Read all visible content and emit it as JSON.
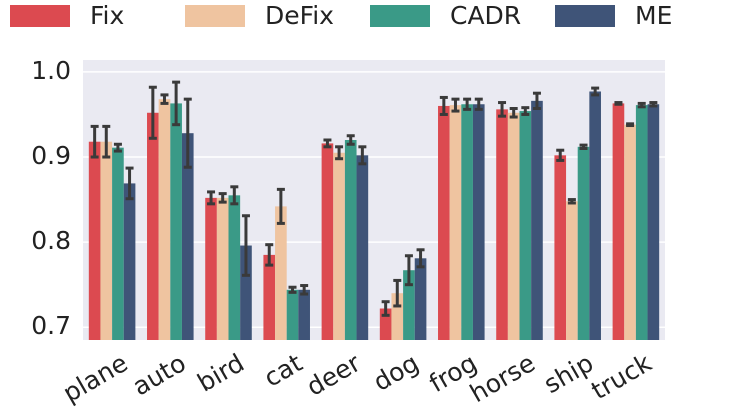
{
  "chart_data": {
    "type": "bar",
    "categories": [
      "plane",
      "auto",
      "bird",
      "cat",
      "deer",
      "dog",
      "frog",
      "horse",
      "ship",
      "truck"
    ],
    "series": [
      {
        "name": "Fix",
        "color": "#dc4a50",
        "values": [
          0.918,
          0.952,
          0.852,
          0.785,
          0.916,
          0.722,
          0.96,
          0.956,
          0.902,
          0.963
        ],
        "errors": [
          0.018,
          0.03,
          0.007,
          0.012,
          0.004,
          0.008,
          0.01,
          0.008,
          0.006,
          0.001
        ]
      },
      {
        "name": "DeFix",
        "color": "#efc4a0",
        "values": [
          0.918,
          0.968,
          0.852,
          0.842,
          0.905,
          0.74,
          0.961,
          0.952,
          0.848,
          0.938
        ],
        "errors": [
          0.018,
          0.005,
          0.005,
          0.02,
          0.007,
          0.015,
          0.007,
          0.005,
          0.002,
          0.001
        ]
      },
      {
        "name": "CADR",
        "color": "#3a9a87",
        "values": [
          0.911,
          0.963,
          0.855,
          0.744,
          0.92,
          0.767,
          0.962,
          0.954,
          0.912,
          0.961
        ],
        "errors": [
          0.004,
          0.025,
          0.01,
          0.003,
          0.005,
          0.017,
          0.006,
          0.004,
          0.002,
          0.002
        ]
      },
      {
        "name": "ME",
        "color": "#3f5478",
        "values": [
          0.869,
          0.928,
          0.796,
          0.744,
          0.902,
          0.781,
          0.962,
          0.966,
          0.977,
          0.962
        ],
        "errors": [
          0.018,
          0.04,
          0.035,
          0.005,
          0.01,
          0.01,
          0.006,
          0.009,
          0.004,
          0.002
        ]
      }
    ],
    "ylim": [
      0.685,
      1.014
    ],
    "yticks": [
      {
        "value": 0.7,
        "label": "0.7"
      },
      {
        "value": 0.8,
        "label": "0.8"
      },
      {
        "value": 0.9,
        "label": "0.9"
      },
      {
        "value": 1.0,
        "label": "1.0"
      }
    ],
    "grid": true
  }
}
